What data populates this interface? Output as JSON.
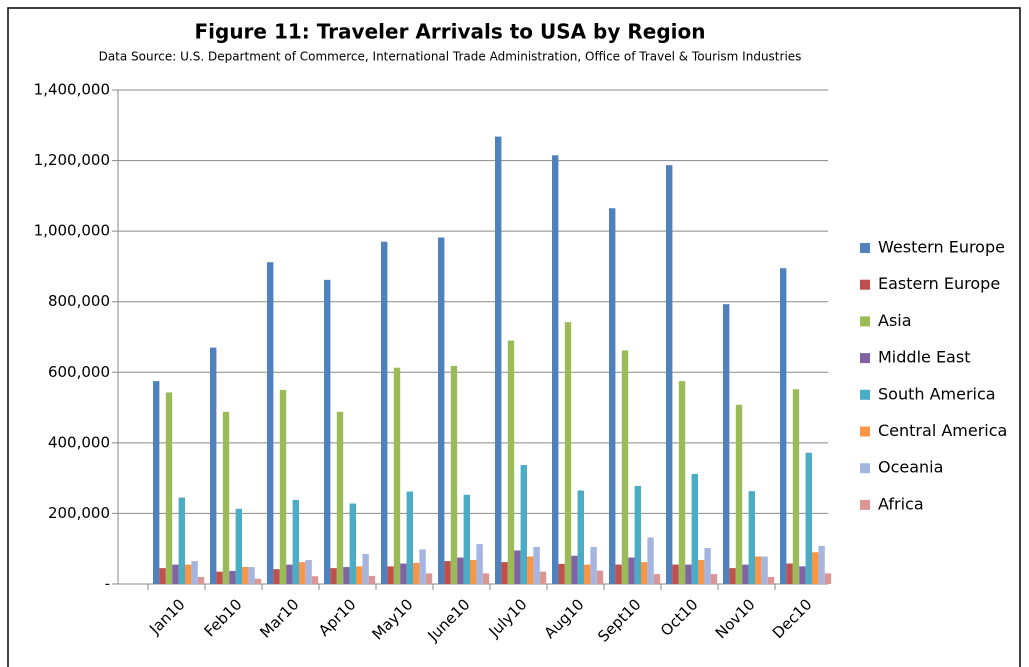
{
  "chart_data": {
    "type": "bar",
    "title": "Figure 11: Traveler Arrivals to USA by Region",
    "subtitle": "Data Source: U.S. Department of Commerce, International Trade Administration, Office of Travel & Tourism Industries",
    "categories": [
      "Jan10",
      "Feb10",
      "Mar10",
      "Apr10",
      "May10",
      "June10",
      "July10",
      "Aug10",
      "Sept10",
      "Oct10",
      "Nov10",
      "Dec10"
    ],
    "series": [
      {
        "name": "Western Europe",
        "color": "#4F81BD",
        "values": [
          575000,
          670000,
          912000,
          862000,
          970000,
          982000,
          1268000,
          1215000,
          1065000,
          1187000,
          793000,
          895000
        ]
      },
      {
        "name": "Eastern Europe",
        "color": "#C0504D",
        "values": [
          45000,
          35000,
          42000,
          45000,
          50000,
          65000,
          62000,
          57000,
          55000,
          55000,
          45000,
          58000
        ]
      },
      {
        "name": "Asia",
        "color": "#9BBB59",
        "values": [
          543000,
          488000,
          550000,
          488000,
          613000,
          618000,
          690000,
          742000,
          662000,
          575000,
          508000,
          552000
        ]
      },
      {
        "name": "Middle East",
        "color": "#8064A2",
        "values": [
          55000,
          37000,
          55000,
          48000,
          58000,
          75000,
          95000,
          80000,
          75000,
          55000,
          55000,
          50000
        ]
      },
      {
        "name": "South America",
        "color": "#4BACC6",
        "values": [
          245000,
          213000,
          238000,
          228000,
          262000,
          253000,
          337000,
          265000,
          278000,
          312000,
          263000,
          372000
        ]
      },
      {
        "name": "Central America",
        "color": "#F79646",
        "values": [
          55000,
          48000,
          62000,
          50000,
          60000,
          68000,
          78000,
          55000,
          62000,
          68000,
          78000,
          90000
        ]
      },
      {
        "name": "Oceania",
        "color": "#A5B5E0",
        "values": [
          65000,
          48000,
          68000,
          85000,
          98000,
          113000,
          105000,
          105000,
          132000,
          102000,
          78000,
          108000
        ]
      },
      {
        "name": "Africa",
        "color": "#D99694",
        "values": [
          20000,
          15000,
          22000,
          23000,
          30000,
          30000,
          35000,
          38000,
          28000,
          28000,
          20000,
          30000
        ]
      }
    ],
    "ylim": [
      0,
      1400000
    ],
    "yticks": [
      {
        "value": 0,
        "label": "-"
      },
      {
        "value": 200000,
        "label": "200,000"
      },
      {
        "value": 400000,
        "label": "400,000"
      },
      {
        "value": 600000,
        "label": "600,000"
      },
      {
        "value": 800000,
        "label": "800,000"
      },
      {
        "value": 1000000,
        "label": "1,000,000"
      },
      {
        "value": 1200000,
        "label": "1,200,000"
      },
      {
        "value": 1400000,
        "label": "1,400,000"
      }
    ],
    "grid": true,
    "legend": "right"
  }
}
